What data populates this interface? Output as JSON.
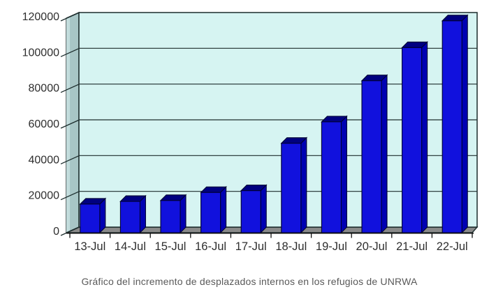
{
  "caption": "Gráfico del incremento de desplazados internos en los refugios de UNRWA",
  "chart_data": {
    "type": "bar",
    "effect": "3d-column",
    "title": "",
    "xlabel": "",
    "ylabel": "",
    "categories": [
      "13-Jul",
      "14-Jul",
      "15-Jul",
      "16-Jul",
      "17-Jul",
      "18-Jul",
      "19-Jul",
      "20-Jul",
      "21-Jul",
      "22-Jul"
    ],
    "values": [
      16000,
      17500,
      18000,
      22500,
      23500,
      50000,
      62000,
      85000,
      103500,
      118500
    ],
    "ylim": [
      0,
      120000
    ],
    "ytick_interval": 20000,
    "ytick_labels_top_to_bottom": [
      "120000",
      "100000",
      "80000",
      "60000",
      "40000",
      "20000",
      "0"
    ],
    "grid": true,
    "legend": false,
    "colors": {
      "plot_background": "#d6f4f2",
      "side_wall": "#a8c6c6",
      "side_wall_highlight": "#c2dcdc",
      "floor": "#898989",
      "gridline": "#1c2c2c",
      "bar_front": "#1111dd",
      "bar_top": "#000080",
      "bar_side": "#0000b3",
      "bar_outline": "#000033",
      "axis_text": "#2e2e2e",
      "caption_text": "#595959"
    }
  }
}
